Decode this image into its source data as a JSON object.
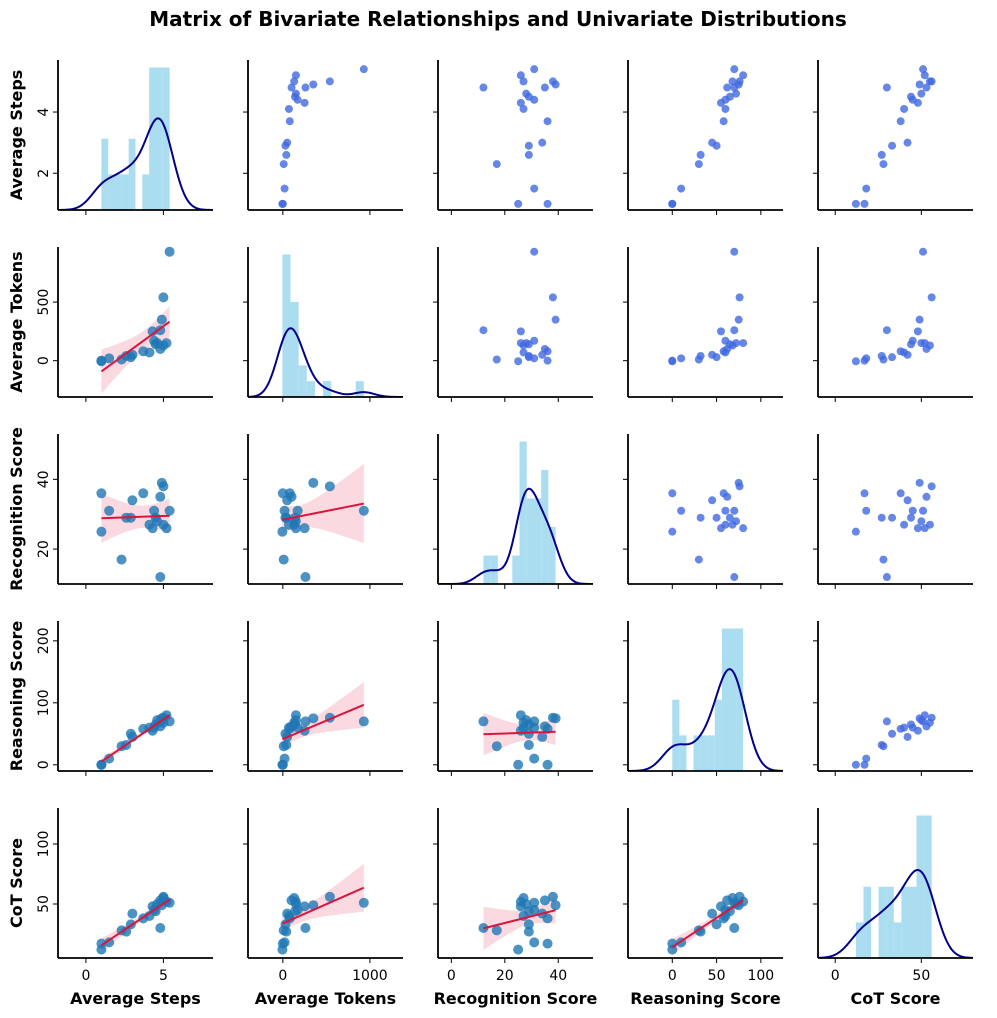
{
  "chart_data": {
    "type": "pairplot",
    "title": "Matrix of Bivariate Relationships and Univariate Distributions",
    "upper_color": "#4169e1",
    "lower_color": "#1f77b4",
    "line_color": "#dc143c",
    "band_color": "#f7c1cc",
    "hist_color": "#87ceeb",
    "kde_color": "#00008b",
    "variables": [
      {
        "name": "Average Steps",
        "lim": [
          -1.8,
          8.2
        ],
        "ylim": [
          0.8,
          5.7
        ],
        "xticks": [
          0,
          5
        ],
        "yticks": [
          2,
          4
        ],
        "values": [
          1.0,
          1.0,
          1.5,
          2.3,
          2.6,
          2.9,
          3.0,
          3.7,
          4.1,
          4.3,
          4.4,
          4.5,
          4.6,
          4.8,
          4.8,
          4.9,
          5.0,
          5.0,
          5.2,
          5.4
        ]
      },
      {
        "name": "Average Tokens",
        "lim": [
          -400,
          1380
        ],
        "ylim": [
          -310,
          970
        ],
        "xticks": [
          0,
          1000
        ],
        "yticks": [
          0,
          500
        ],
        "values": [
          -5,
          0,
          20,
          10,
          40,
          30,
          50,
          80,
          70,
          250,
          170,
          140,
          150,
          100,
          260,
          350,
          130,
          540,
          150,
          930
        ]
      },
      {
        "name": "Recognition Score",
        "lim": [
          -5,
          53
        ],
        "ylim": [
          10,
          53
        ],
        "xticks": [
          0,
          20,
          40
        ],
        "yticks": [
          20,
          40
        ],
        "values": [
          25,
          36,
          31,
          17,
          29,
          29,
          34,
          36,
          27,
          26,
          31,
          29,
          28,
          35,
          12,
          39,
          27,
          38,
          26,
          31
        ]
      },
      {
        "name": "Reasoning Score",
        "lim": [
          -50,
          125
        ],
        "ylim": [
          -10,
          232
        ],
        "xticks": [
          0,
          50,
          100
        ],
        "yticks": [
          0,
          100,
          200
        ],
        "values": [
          0,
          0,
          10,
          30,
          32,
          50,
          45,
          58,
          60,
          55,
          60,
          65,
          72,
          62,
          70,
          75,
          68,
          76,
          80,
          70
        ]
      },
      {
        "name": "CoT Score",
        "lim": [
          -10,
          80
        ],
        "ylim": [
          5,
          130
        ],
        "xticks": [
          0,
          50
        ],
        "yticks": [
          50,
          100
        ],
        "values": [
          12,
          17,
          18,
          28,
          27,
          33,
          42,
          38,
          40,
          48,
          45,
          44,
          50,
          53,
          30,
          49,
          55,
          56,
          52,
          51
        ]
      }
    ]
  }
}
